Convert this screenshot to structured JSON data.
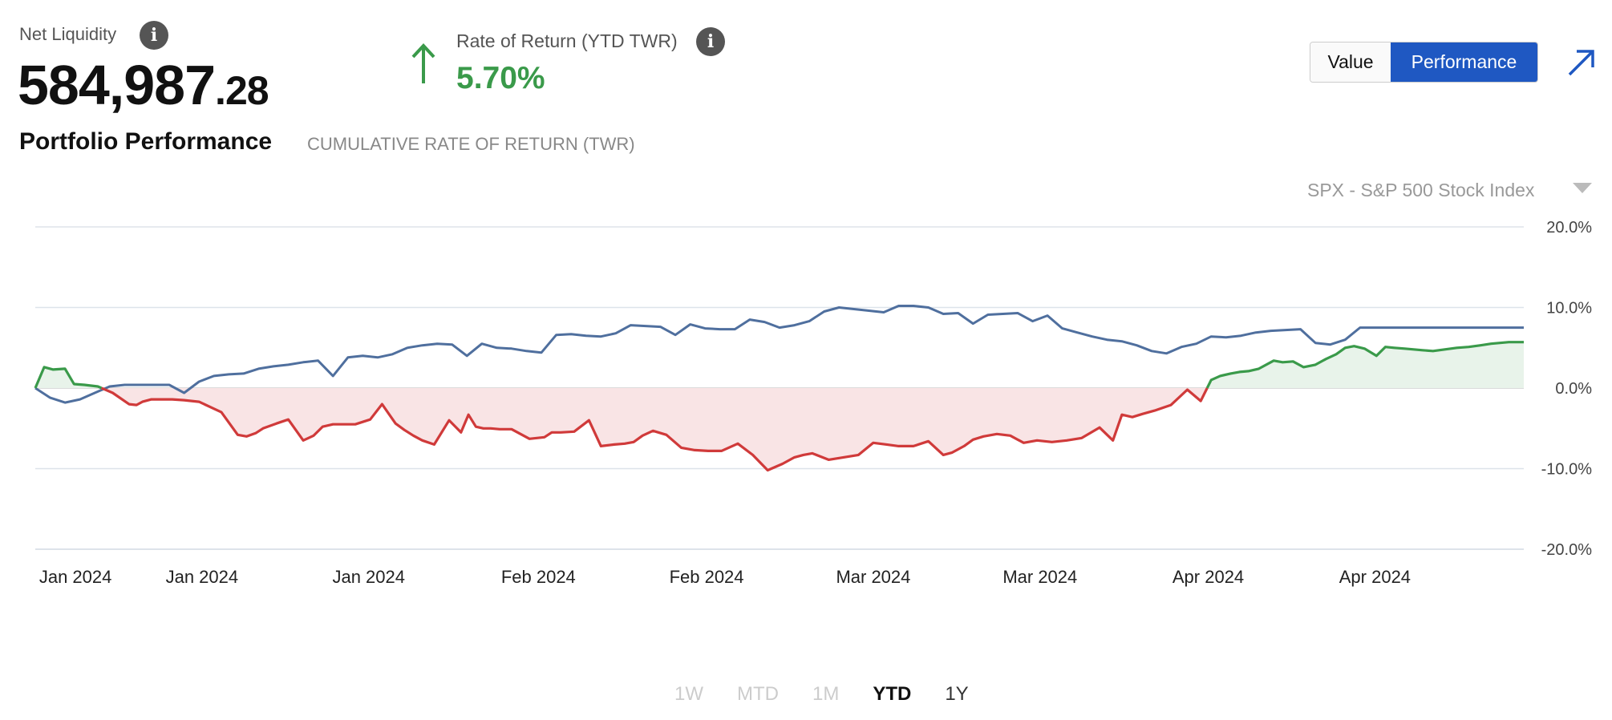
{
  "header": {
    "net_liquidity_label": "Net Liquidity",
    "net_liquidity_whole": "584,987",
    "net_liquidity_cents": ".28",
    "ror_label": "Rate of Return (YTD TWR)",
    "ror_value": "5.70%",
    "ror_direction": "up",
    "info_glyph": "i"
  },
  "toggle": {
    "value_label": "Value",
    "performance_label": "Performance",
    "active": "Performance"
  },
  "section": {
    "title": "Portfolio Performance",
    "subtitle": "CUMULATIVE RATE OF RETURN (TWR)"
  },
  "benchmark": {
    "selected": "SPX - S&P 500 Stock Index"
  },
  "ranges": [
    {
      "label": "1W",
      "state": "disabled"
    },
    {
      "label": "MTD",
      "state": "disabled"
    },
    {
      "label": "1M",
      "state": "disabled"
    },
    {
      "label": "YTD",
      "state": "active"
    },
    {
      "label": "1Y",
      "state": "enabled"
    }
  ],
  "colors": {
    "accent": "#1f58c2",
    "positive": "#3a9a4a",
    "negative": "#d03a3a",
    "benchmark_line": "#4f6f9e",
    "positive_fill": "#e8f3ea",
    "negative_fill": "#f9e4e5"
  },
  "chart_data": {
    "type": "line",
    "ylim": [
      -20,
      20
    ],
    "y_ticks": [
      "20.0%",
      "10.0%",
      "0.0%",
      "-10.0%",
      "-20.0%"
    ],
    "y_tick_values": [
      20,
      10,
      0,
      -10,
      -20
    ],
    "x_tick_labels": [
      "Jan 2024",
      "Jan 2024",
      "Jan 2024",
      "Feb 2024",
      "Feb 2024",
      "Mar 2024",
      "Mar 2024",
      "Apr 2024",
      "Apr 2024"
    ],
    "x_range": [
      0,
      100
    ],
    "x_tick_positions": [
      2.7,
      11.2,
      22.4,
      33.8,
      45.1,
      56.3,
      67.5,
      78.8,
      90.0
    ],
    "legend": "none",
    "grid": "horizontal",
    "series": [
      {
        "name": "Portfolio",
        "color_positive": "#3a9a4a",
        "color_negative": "#d03a3a",
        "fill": true,
        "x": [
          0,
          0.6,
          1.2,
          2.0,
          2.6,
          3.3,
          4.2,
          5.2,
          6.3,
          6.8,
          7.2,
          7.8,
          8.5,
          9.2,
          10.0,
          11.0,
          12.5,
          13.6,
          14.2,
          14.8,
          15.3,
          16.2,
          17.0,
          18.0,
          18.7,
          19.3,
          20.0,
          20.8,
          21.5,
          22.5,
          23.3,
          24.2,
          24.8,
          25.4,
          26.0,
          26.8,
          27.8,
          28.6,
          29.1,
          29.6,
          30.1,
          30.6,
          31.2,
          32.0,
          33.2,
          34.2,
          34.7,
          35.3,
          36.2,
          37.2,
          38.0,
          38.9,
          39.6,
          40.2,
          40.8,
          41.5,
          42.4,
          43.4,
          44.3,
          45.2,
          46.1,
          47.2,
          48.2,
          49.2,
          50.2,
          51.0,
          51.6,
          52.2,
          53.3,
          54.3,
          55.3,
          56.3,
          57.2,
          58.0,
          59.0,
          60.0,
          61.0,
          61.6,
          62.4,
          63.0,
          63.7,
          64.6,
          65.5,
          66.4,
          67.3,
          68.3,
          69.3,
          70.3,
          71.5,
          72.4,
          73.0,
          73.7,
          74.4,
          75.2,
          76.3,
          77.4,
          78.3,
          79.0,
          79.6,
          80.3,
          80.9,
          81.5,
          82.2,
          83.2,
          83.8,
          84.5,
          85.2,
          86.0,
          86.7,
          87.4,
          88.0,
          88.6,
          89.3,
          90.1,
          90.7,
          91.3,
          92.0,
          92.6,
          93.2,
          93.9,
          94.7,
          95.5,
          96.3,
          97.1,
          97.8,
          98.4,
          99.0,
          100
        ],
        "y": [
          0.0,
          2.6,
          2.3,
          2.4,
          0.5,
          0.4,
          0.2,
          -0.6,
          -2.0,
          -2.1,
          -1.7,
          -1.4,
          -1.4,
          -1.4,
          -1.5,
          -1.7,
          -3.0,
          -5.8,
          -6.0,
          -5.6,
          -5.0,
          -4.4,
          -3.9,
          -6.5,
          -5.9,
          -4.8,
          -4.5,
          -4.5,
          -4.5,
          -3.9,
          -2.0,
          -4.4,
          -5.2,
          -5.9,
          -6.5,
          -7.0,
          -4.0,
          -5.5,
          -3.3,
          -4.8,
          -5.0,
          -5.0,
          -5.1,
          -5.1,
          -6.3,
          -6.1,
          -5.5,
          -5.5,
          -5.4,
          -4.0,
          -7.2,
          -7.0,
          -6.9,
          -6.7,
          -5.9,
          -5.3,
          -5.8,
          -7.4,
          -7.7,
          -7.8,
          -7.8,
          -6.9,
          -8.3,
          -10.2,
          -9.4,
          -8.6,
          -8.3,
          -8.1,
          -8.9,
          -8.6,
          -8.3,
          -6.8,
          -7.0,
          -7.2,
          -7.2,
          -6.6,
          -8.3,
          -8.0,
          -7.2,
          -6.4,
          -6.0,
          -5.7,
          -5.9,
          -6.8,
          -6.5,
          -6.7,
          -6.5,
          -6.2,
          -4.9,
          -6.5,
          -3.3,
          -3.6,
          -3.2,
          -2.8,
          -2.1,
          -0.2,
          -1.6,
          1.0,
          1.5,
          1.8,
          2.0,
          2.1,
          2.4,
          3.4,
          3.2,
          3.3,
          2.6,
          2.9,
          3.6,
          4.2,
          5.0,
          5.2,
          4.9,
          4.0,
          5.1,
          5.0,
          4.9,
          4.8,
          4.7,
          4.6,
          4.8,
          5.0,
          5.1,
          5.3,
          5.5,
          5.6,
          5.7,
          5.7
        ]
      },
      {
        "name": "SPX - S&P 500 Stock Index",
        "color": "#4f6f9e",
        "fill": false,
        "x": [
          0,
          1.0,
          2.0,
          3.0,
          4.0,
          5.0,
          6.0,
          7.0,
          8.0,
          9.0,
          10.0,
          11.0,
          12.0,
          13.0,
          14.0,
          15.0,
          16.0,
          17.0,
          18.0,
          19.0,
          20.0,
          21.0,
          22.0,
          23.0,
          24.0,
          25.0,
          26.0,
          27.0,
          28.0,
          29.0,
          30.0,
          31.0,
          32.0,
          33.0,
          34.0,
          35.0,
          36.0,
          37.0,
          38.0,
          39.0,
          40.0,
          41.0,
          42.0,
          43.0,
          44.0,
          45.0,
          46.0,
          47.0,
          48.0,
          49.0,
          50.0,
          51.0,
          52.0,
          53.0,
          54.0,
          55.0,
          56.0,
          57.0,
          58.0,
          59.0,
          60.0,
          61.0,
          62.0,
          63.0,
          64.0,
          65.0,
          66.0,
          67.0,
          68.0,
          69.0,
          70.0,
          71.0,
          72.0,
          73.0,
          74.0,
          75.0,
          76.0,
          77.0,
          78.0,
          79.0,
          80.0,
          81.0,
          82.0,
          83.0,
          84.0,
          85.0,
          86.0,
          87.0,
          88.0,
          89.0,
          90.0,
          91.0,
          92.0,
          93.0,
          94.0,
          95.0,
          96.0,
          97.0,
          98.0,
          99.0,
          100
        ],
        "y": [
          0.0,
          -1.2,
          -1.8,
          -1.4,
          -0.6,
          0.2,
          0.4,
          0.4,
          0.4,
          0.4,
          -0.6,
          0.8,
          1.5,
          1.7,
          1.8,
          2.4,
          2.7,
          2.9,
          3.2,
          3.4,
          1.5,
          3.8,
          4.0,
          3.8,
          4.2,
          5.0,
          5.3,
          5.5,
          5.4,
          4.0,
          5.5,
          5.0,
          4.9,
          4.6,
          4.4,
          6.6,
          6.7,
          6.5,
          6.4,
          6.8,
          7.8,
          7.7,
          7.6,
          6.6,
          7.9,
          7.4,
          7.3,
          7.3,
          8.5,
          8.2,
          7.5,
          7.8,
          8.3,
          9.5,
          10.0,
          9.8,
          9.6,
          9.4,
          10.2,
          10.2,
          10.0,
          9.2,
          9.3,
          8.0,
          9.1,
          9.2,
          9.3,
          8.3,
          9.0,
          7.4,
          6.9,
          6.4,
          6.0,
          5.8,
          5.3,
          4.6,
          4.3,
          5.1,
          5.5,
          6.4,
          6.3,
          6.5,
          6.9,
          7.1,
          7.2,
          7.3,
          5.6,
          5.4,
          6.0,
          7.5,
          7.5,
          7.5,
          7.5,
          7.5,
          7.5,
          7.5,
          7.5,
          7.5,
          7.5,
          7.5,
          7.5
        ]
      }
    ]
  }
}
